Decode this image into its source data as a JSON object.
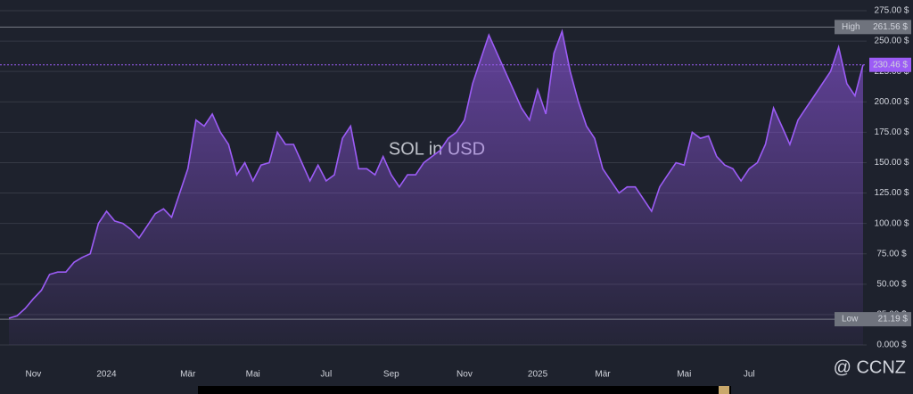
{
  "chart_data": {
    "type": "area",
    "title": "SOL in USD",
    "watermark": "@ CCNZ",
    "categories": [
      null,
      null,
      null,
      "Nov",
      null,
      null,
      null,
      null,
      null,
      null,
      null,
      null,
      "2024",
      null,
      null,
      null,
      null,
      null,
      null,
      null,
      null,
      null,
      "Mär",
      null,
      null,
      null,
      null,
      null,
      null,
      null,
      "Mai",
      null,
      null,
      null,
      null,
      null,
      null,
      null,
      null,
      "Jul",
      null,
      null,
      null,
      null,
      null,
      null,
      null,
      "Sep",
      null,
      null,
      null,
      null,
      null,
      null,
      null,
      null,
      "Nov",
      null,
      null,
      null,
      null,
      null,
      null,
      null,
      null,
      "2025",
      null,
      null,
      null,
      null,
      null,
      null,
      null,
      "Mär",
      null,
      null,
      null,
      null,
      null,
      null,
      null,
      null,
      null,
      "Mai",
      null,
      null,
      null,
      null,
      null,
      null,
      null,
      "Jul",
      null,
      null,
      null,
      null,
      null,
      null,
      null,
      null,
      null,
      null,
      null,
      null,
      null,
      null
    ],
    "series": [
      {
        "name": "SOL",
        "color": "#9c5cf6",
        "values": [
          22,
          24,
          30,
          38,
          45,
          58,
          60,
          60,
          68,
          72,
          75,
          100,
          110,
          102,
          100,
          95,
          88,
          98,
          108,
          112,
          105,
          125,
          145,
          185,
          180,
          190,
          175,
          165,
          140,
          150,
          135,
          148,
          150,
          175,
          165,
          165,
          150,
          135,
          148,
          135,
          140,
          170,
          180,
          145,
          145,
          140,
          155,
          140,
          130,
          140,
          140,
          150,
          155,
          160,
          170,
          175,
          185,
          215,
          235,
          255,
          240,
          225,
          210,
          195,
          185,
          210,
          190,
          240,
          258,
          225,
          200,
          180,
          170,
          145,
          135,
          125,
          130,
          130,
          120,
          110,
          130,
          140,
          150,
          148,
          175,
          170,
          172,
          155,
          148,
          145,
          135,
          145,
          150,
          165,
          195,
          180,
          165,
          185,
          195,
          205,
          215,
          225,
          245,
          215,
          205,
          230.46
        ]
      }
    ],
    "ylim": [
      0,
      275
    ],
    "yticks": [
      {
        "value": 0,
        "label": "0.000 $"
      },
      {
        "value": 25,
        "label": "25.00 $"
      },
      {
        "value": 50,
        "label": "50.00 $"
      },
      {
        "value": 75,
        "label": "75.00 $"
      },
      {
        "value": 100,
        "label": "100.00 $"
      },
      {
        "value": 125,
        "label": "125.00 $"
      },
      {
        "value": 150,
        "label": "150.00 $"
      },
      {
        "value": 175,
        "label": "175.00 $"
      },
      {
        "value": 200,
        "label": "200.00 $"
      },
      {
        "value": 225,
        "label": "225.00 $"
      },
      {
        "value": 250,
        "label": "250.00 $"
      },
      {
        "value": 275,
        "label": "275.00 $"
      }
    ],
    "grid": true,
    "high": {
      "label": "High",
      "value": 261.56,
      "value_label": "261.56 $"
    },
    "low": {
      "label": "Low",
      "value": 21.19,
      "value_label": "21.19 $"
    },
    "last": {
      "value": 230.46,
      "value_label": "230.46 $"
    }
  }
}
